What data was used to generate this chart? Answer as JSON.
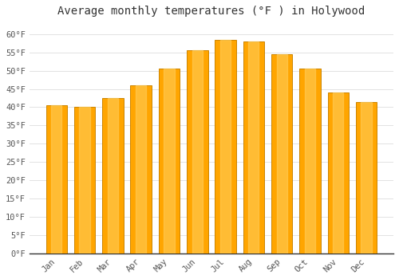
{
  "title": "Average monthly temperatures (°F ) in Holywood",
  "months": [
    "Jan",
    "Feb",
    "Mar",
    "Apr",
    "May",
    "Jun",
    "Jul",
    "Aug",
    "Sep",
    "Oct",
    "Nov",
    "Dec"
  ],
  "values": [
    40.5,
    40.0,
    42.5,
    46.0,
    50.5,
    55.5,
    58.5,
    58.0,
    54.5,
    50.5,
    44.0,
    41.5
  ],
  "bar_color": "#FFA500",
  "bar_edge_color": "#CC8400",
  "background_color": "#FFFFFF",
  "grid_color": "#DDDDDD",
  "ylim": [
    0,
    63
  ],
  "yticks": [
    0,
    5,
    10,
    15,
    20,
    25,
    30,
    35,
    40,
    45,
    50,
    55,
    60
  ],
  "ytick_labels": [
    "0°F",
    "5°F",
    "10°F",
    "15°F",
    "20°F",
    "25°F",
    "30°F",
    "35°F",
    "40°F",
    "45°F",
    "50°F",
    "55°F",
    "60°F"
  ],
  "title_fontsize": 10,
  "tick_fontsize": 7.5,
  "bar_width": 0.75
}
